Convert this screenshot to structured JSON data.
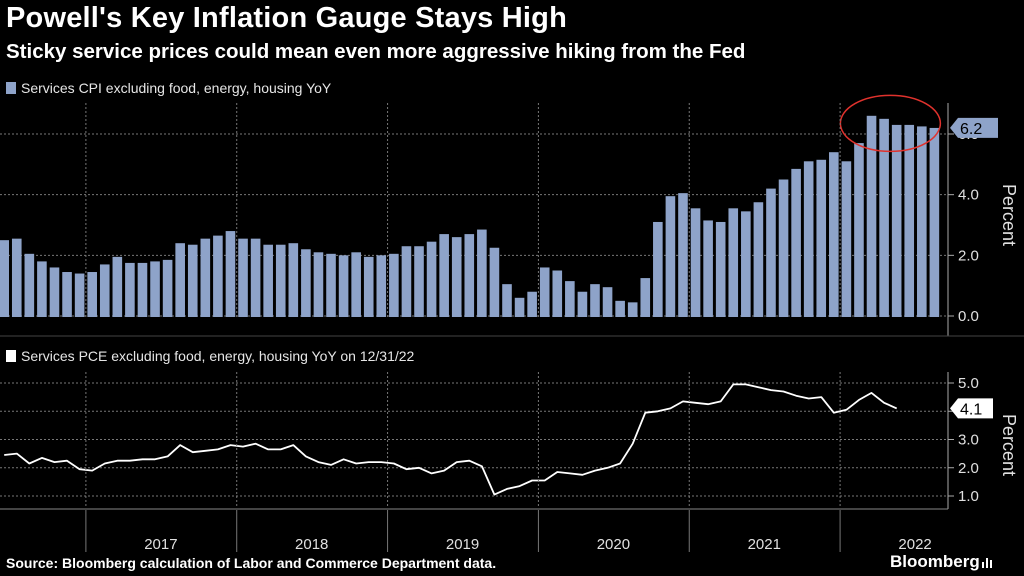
{
  "header": {
    "title": "Powell's Key Inflation Gauge Stays High",
    "subtitle": "Sticky service prices could mean even more aggressive hiking from the Fed"
  },
  "source": "Source: Bloomberg calculation of Labor and Commerce Department data.",
  "brand": "Bloomberg",
  "colors": {
    "bars": "#8ea3c9",
    "line": "#ffffff",
    "circle": "#e0322d",
    "grid": "#777777"
  },
  "chart_data": [
    {
      "type": "bar",
      "title": "",
      "legend": "Services CPI excluding food, energy, housing YoY",
      "ylabel": "Percent",
      "ylim": [
        -0.2,
        7.0
      ],
      "yticks": [
        "0.0",
        "2.0",
        "4.0",
        "6.0"
      ],
      "ytick_values": [
        0,
        2,
        4,
        6
      ],
      "last_label": "6.2",
      "x_start": "2016-06",
      "values": [
        2.5,
        2.55,
        2.05,
        1.8,
        1.6,
        1.45,
        1.4,
        1.45,
        1.7,
        1.95,
        1.75,
        1.75,
        1.8,
        1.85,
        2.4,
        2.35,
        2.55,
        2.65,
        2.8,
        2.55,
        2.55,
        2.35,
        2.35,
        2.4,
        2.2,
        2.1,
        2.05,
        2.0,
        2.1,
        1.95,
        2.0,
        2.05,
        2.3,
        2.3,
        2.45,
        2.7,
        2.6,
        2.7,
        2.85,
        2.25,
        1.05,
        0.6,
        0.8,
        1.6,
        1.5,
        1.15,
        0.8,
        1.05,
        0.95,
        0.5,
        0.45,
        1.25,
        3.1,
        3.95,
        4.05,
        3.55,
        3.15,
        3.1,
        3.55,
        3.45,
        3.75,
        4.2,
        4.5,
        4.85,
        5.1,
        5.15,
        5.4,
        5.1,
        5.7,
        6.6,
        6.5,
        6.3,
        6.3,
        6.25,
        6.2
      ]
    },
    {
      "type": "line",
      "title": "",
      "legend": "Services PCE excluding food, energy, housing YoY on 12/31/22",
      "ylabel": "Percent",
      "ylim": [
        0.55,
        5.3
      ],
      "yticks": [
        "1.0",
        "2.0",
        "3.0",
        "4.0",
        "5.0"
      ],
      "ytick_values": [
        1,
        2,
        3,
        4,
        5
      ],
      "last_label": "4.1",
      "x_start": "2016-06",
      "values": [
        2.45,
        2.5,
        2.15,
        2.35,
        2.2,
        2.25,
        1.95,
        1.9,
        2.15,
        2.25,
        2.25,
        2.3,
        2.3,
        2.4,
        2.8,
        2.55,
        2.6,
        2.65,
        2.8,
        2.75,
        2.85,
        2.65,
        2.65,
        2.8,
        2.4,
        2.2,
        2.1,
        2.3,
        2.15,
        2.2,
        2.2,
        2.15,
        1.95,
        2.0,
        1.8,
        1.9,
        2.2,
        2.25,
        2.05,
        1.05,
        1.25,
        1.35,
        1.55,
        1.55,
        1.85,
        1.8,
        1.75,
        1.9,
        2.0,
        2.15,
        2.85,
        3.95,
        4.0,
        4.1,
        4.35,
        4.3,
        4.25,
        4.35,
        4.95,
        4.95,
        4.85,
        4.75,
        4.7,
        4.55,
        4.45,
        4.5,
        3.95,
        4.05,
        4.4,
        4.65,
        4.3,
        4.1
      ]
    }
  ],
  "x_axis": {
    "years": [
      "2017",
      "2018",
      "2019",
      "2020",
      "2021",
      "2022"
    ]
  }
}
